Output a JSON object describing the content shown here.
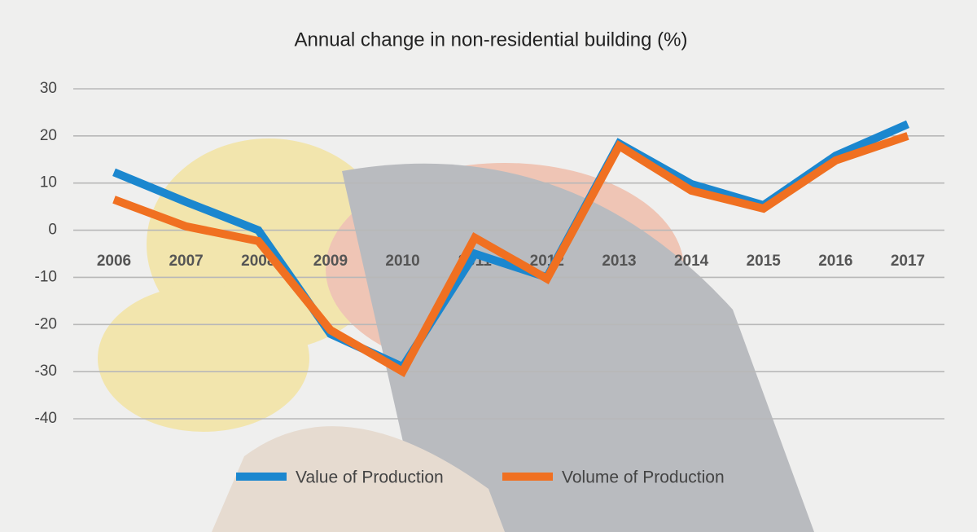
{
  "chart_data": {
    "type": "line",
    "title": "Annual change in non-residential building (%)",
    "categories": [
      "2006",
      "2007",
      "2008",
      "2009",
      "2010",
      "2011",
      "2012",
      "2013",
      "2014",
      "2015",
      "2016",
      "2017"
    ],
    "series": [
      {
        "name": "Value of Production",
        "color": "#1b87cf",
        "values": [
          12.3,
          6,
          0,
          -22,
          -29,
          -5,
          -10,
          18.4,
          9.8,
          5.3,
          15.8,
          22.5
        ]
      },
      {
        "name": "Volume of Production",
        "color": "#f07021",
        "values": [
          6.5,
          0.8,
          -2.3,
          -21.2,
          -30,
          -1.6,
          -10.3,
          17.9,
          8.4,
          4.6,
          14.8,
          20
        ]
      }
    ],
    "ylim": [
      -40,
      30
    ],
    "yticks": [
      -40,
      -30,
      -20,
      -10,
      0,
      10,
      20,
      30
    ],
    "grid": true,
    "legend": "bottom"
  }
}
